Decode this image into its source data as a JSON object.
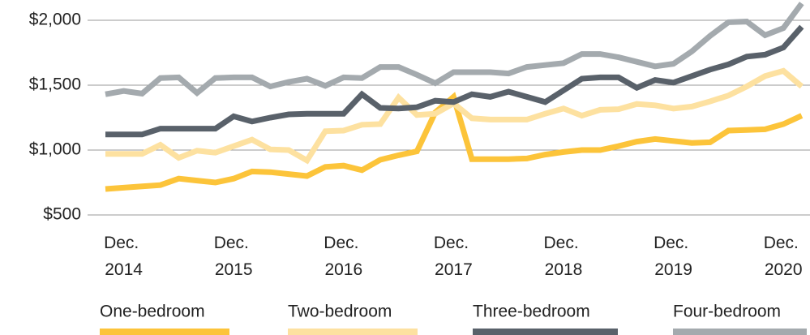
{
  "chart_data": {
    "type": "line",
    "categories": [
      null,
      "Dec. 2014",
      null,
      null,
      null,
      null,
      null,
      "Dec. 2015",
      null,
      null,
      null,
      null,
      null,
      "Dec. 2016",
      null,
      null,
      null,
      null,
      null,
      "Dec. 2017",
      null,
      null,
      null,
      null,
      null,
      "Dec. 2018",
      null,
      null,
      null,
      null,
      null,
      "Dec. 2019",
      null,
      null,
      null,
      null,
      null,
      "Dec. 2020",
      null
    ],
    "series": [
      {
        "name": "One-bedroom",
        "color": "#fcc43a",
        "values": [
          700,
          710,
          720,
          730,
          780,
          765,
          750,
          780,
          835,
          830,
          815,
          800,
          870,
          880,
          845,
          925,
          960,
          990,
          1290,
          1410,
          930,
          930,
          930,
          935,
          965,
          985,
          1000,
          1000,
          1030,
          1065,
          1085,
          1070,
          1055,
          1060,
          1150,
          1155,
          1160,
          1200,
          1265
        ]
      },
      {
        "name": "Two-bedroom",
        "color": "#fde1a0",
        "values": [
          970,
          970,
          970,
          1040,
          940,
          995,
          980,
          1030,
          1080,
          1005,
          1000,
          920,
          1145,
          1150,
          1195,
          1200,
          1405,
          1270,
          1280,
          1360,
          1245,
          1235,
          1235,
          1235,
          1280,
          1320,
          1265,
          1310,
          1315,
          1355,
          1345,
          1320,
          1335,
          1375,
          1420,
          1490,
          1570,
          1610,
          1490
        ]
      },
      {
        "name": "Three-bedroom",
        "color": "#59616a",
        "values": [
          1120,
          1120,
          1120,
          1165,
          1165,
          1165,
          1165,
          1260,
          1220,
          1250,
          1275,
          1280,
          1280,
          1280,
          1430,
          1325,
          1320,
          1330,
          1380,
          1370,
          1430,
          1410,
          1450,
          1410,
          1370,
          1460,
          1550,
          1560,
          1560,
          1480,
          1540,
          1520,
          1570,
          1620,
          1660,
          1720,
          1735,
          1790,
          1950
        ]
      },
      {
        "name": "Four-bedroom",
        "color": "#a4aaae",
        "values": [
          1430,
          1455,
          1435,
          1555,
          1560,
          1440,
          1555,
          1560,
          1560,
          1490,
          1525,
          1550,
          1495,
          1560,
          1555,
          1640,
          1640,
          1580,
          1515,
          1600,
          1600,
          1600,
          1590,
          1640,
          1655,
          1670,
          1740,
          1740,
          1715,
          1680,
          1645,
          1665,
          1760,
          1880,
          1985,
          1990,
          1885,
          1940,
          2130
        ]
      }
    ],
    "ylim": [
      500,
      2140
    ],
    "yticks": [
      {
        "value": 500,
        "label": "$500"
      },
      {
        "value": 1000,
        "label": "$1,000"
      },
      {
        "value": 1500,
        "label": "$1,500"
      },
      {
        "value": 2000,
        "label": "$2,000"
      }
    ],
    "grid": true,
    "legend": "bottom"
  }
}
